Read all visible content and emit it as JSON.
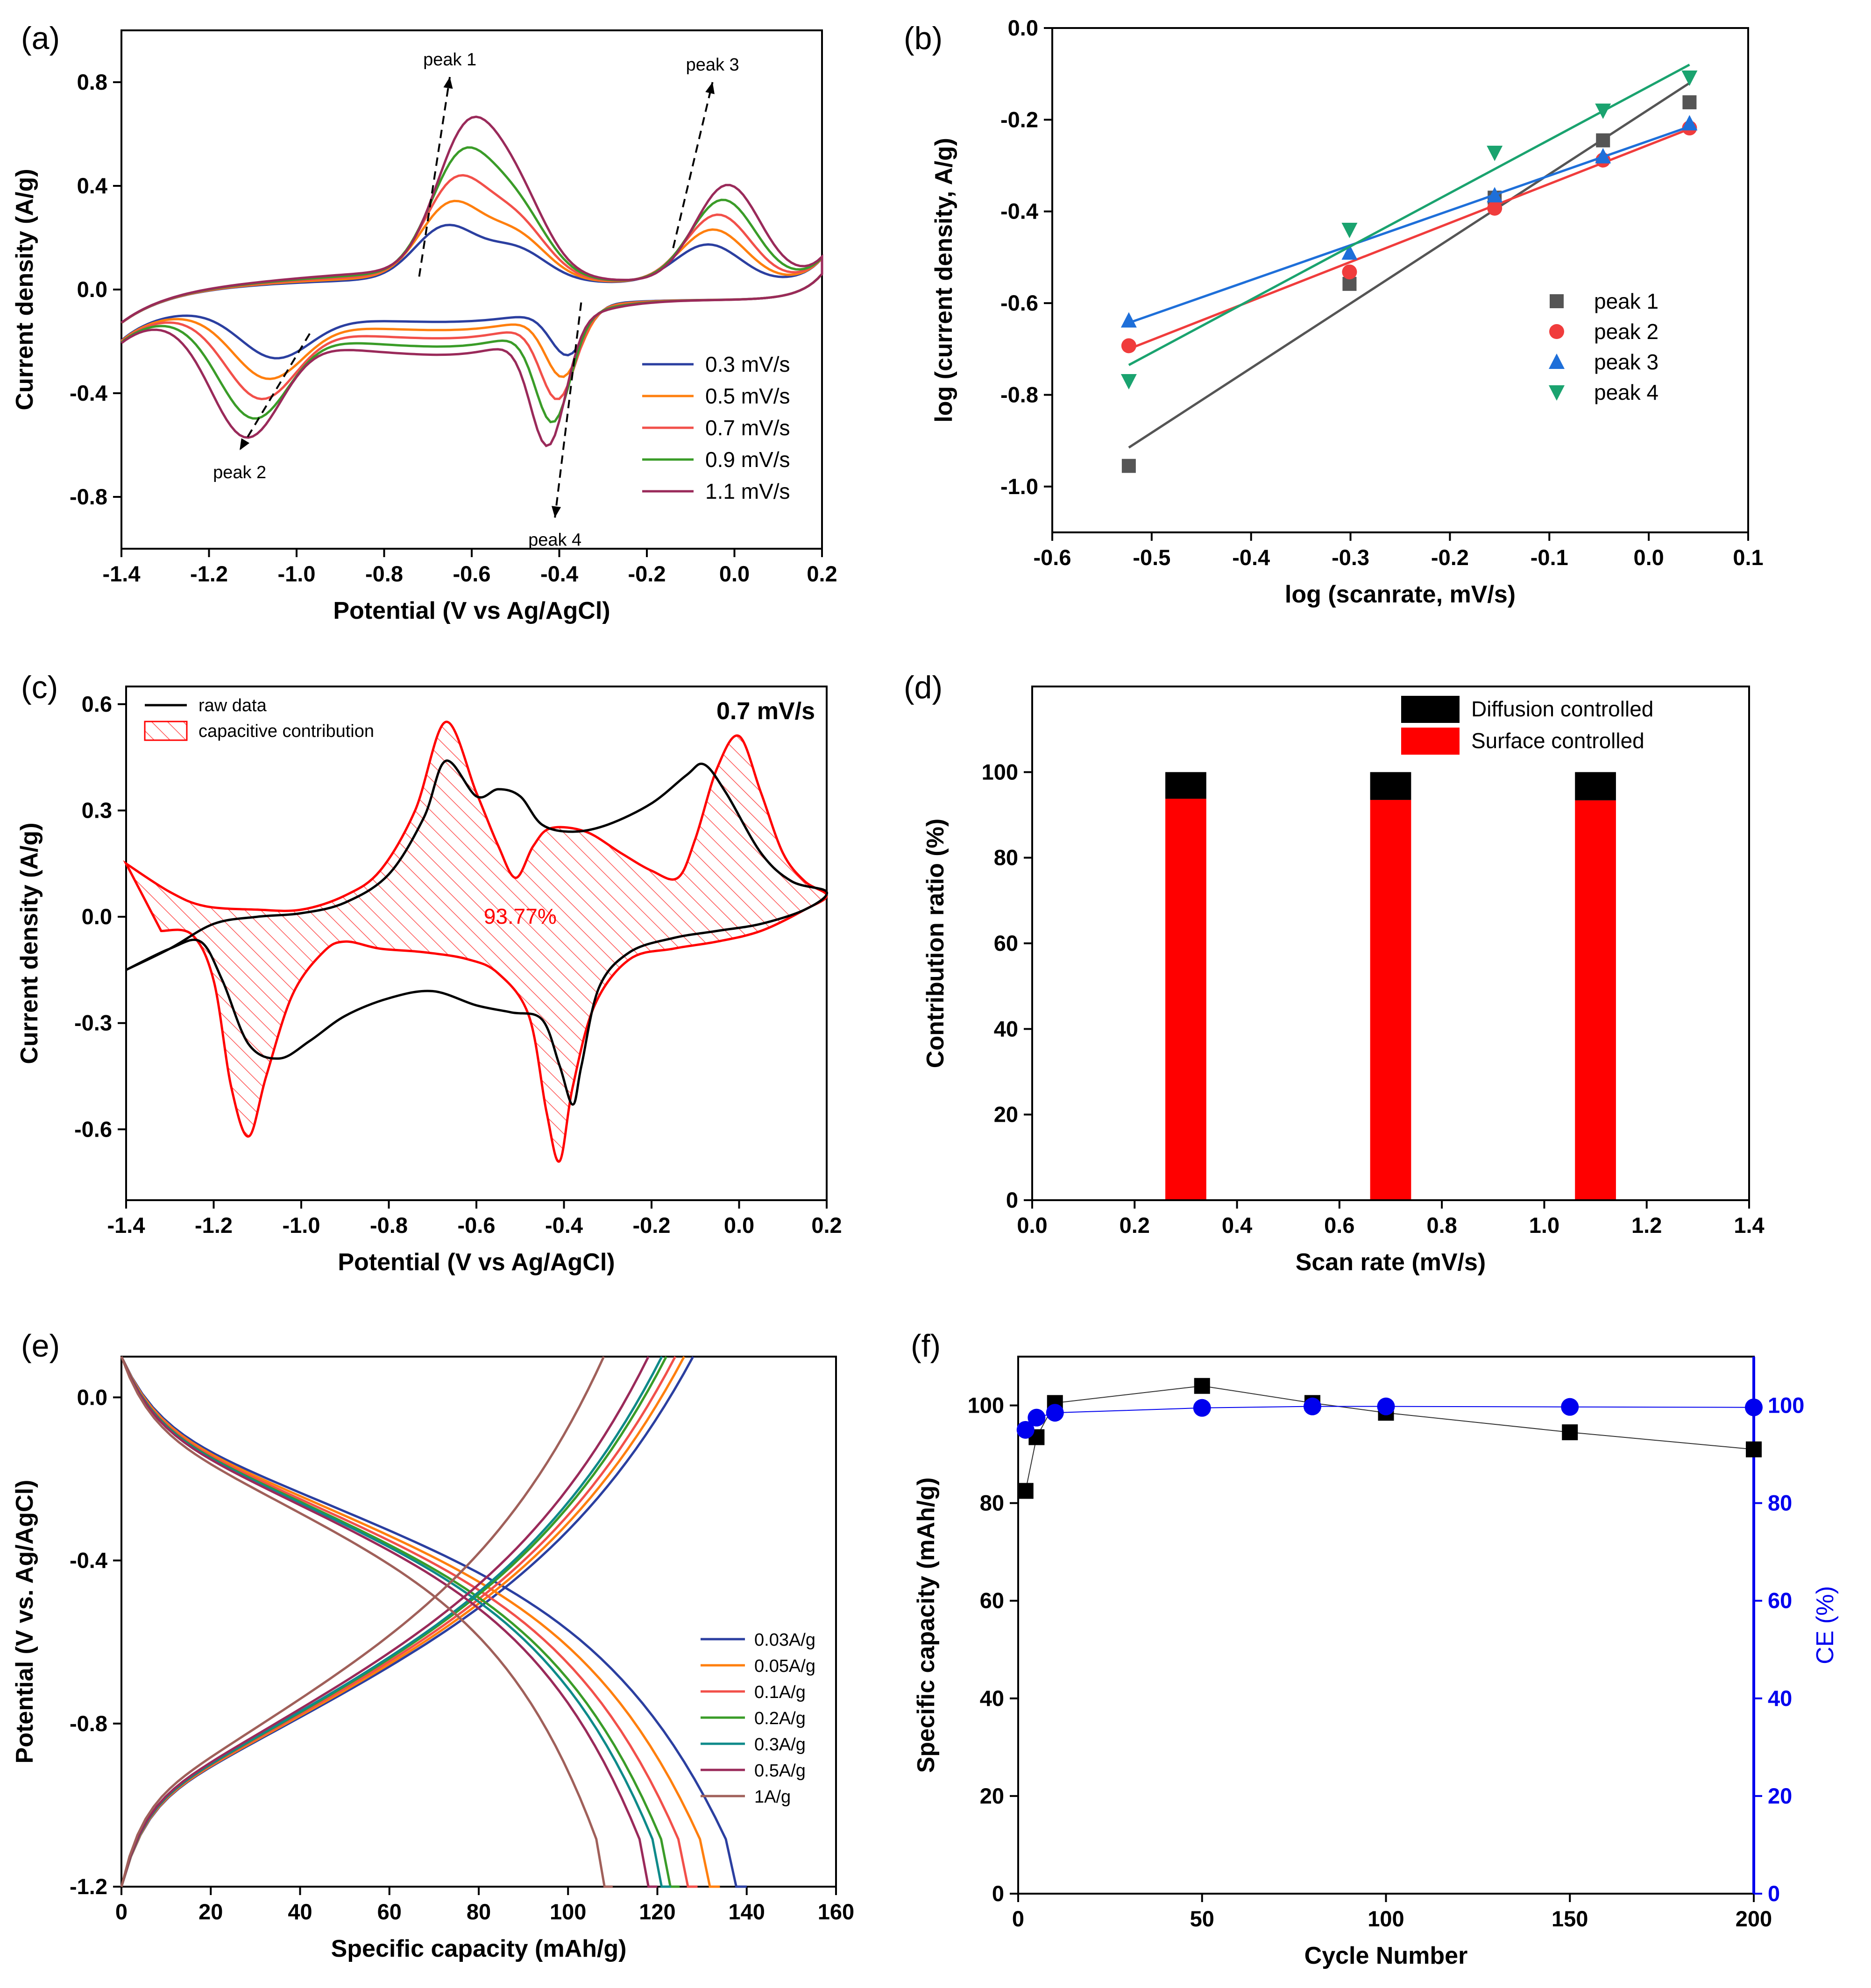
{
  "chart_data": [
    {
      "id": "a",
      "letter": "(a)",
      "type": "line",
      "title": "",
      "xlabel": "Potential (V vs Ag/AgCl)",
      "ylabel": "Current density (A/g)",
      "xlim": [
        -1.4,
        0.2
      ],
      "ylim": [
        -1.0,
        1.0
      ],
      "xticks": [
        -1.4,
        -1.2,
        -1.0,
        -0.8,
        -0.6,
        -0.4,
        -0.2,
        0.0,
        0.2
      ],
      "xtick_labels": [
        "-1.4",
        "-1.2",
        "-1.0",
        "-0.8",
        "-0.6",
        "-0.4",
        "-0.2",
        "0.0",
        "0.2"
      ],
      "yticks": [
        -0.8,
        -0.4,
        0.0,
        0.4,
        0.8
      ],
      "ytick_labels": [
        "-0.8",
        "-0.4",
        "0.0",
        "0.4",
        "0.8"
      ],
      "legend_position": "bottom-right",
      "series": [
        {
          "name": "0.3 mV/s",
          "color": "#2b3fa0",
          "scale": 0.4
        },
        {
          "name": "0.5 mV/s",
          "color": "#ff7f0e",
          "scale": 0.55
        },
        {
          "name": "0.7 mV/s",
          "color": "#f2504a",
          "scale": 0.7
        },
        {
          "name": "0.9 mV/s",
          "color": "#3a9c28",
          "scale": 0.85
        },
        {
          "name": "1.1 mV/s",
          "color": "#9a2a5a",
          "scale": 1.0
        }
      ],
      "annotations": [
        {
          "text": "peak 1",
          "x": -0.72,
          "y": 0.05,
          "x2": -0.65,
          "y2": 0.82
        },
        {
          "text": "peak 3",
          "x": -0.14,
          "y": 0.16,
          "x2": -0.05,
          "y2": 0.8
        },
        {
          "text": "peak 2",
          "x": -0.97,
          "y": -0.17,
          "x2": -1.13,
          "y2": -0.62
        },
        {
          "text": "peak 4",
          "x": -0.35,
          "y": -0.05,
          "x2": -0.41,
          "y2": -0.88
        }
      ]
    },
    {
      "id": "b",
      "letter": "(b)",
      "type": "scatter",
      "title": "",
      "xlabel": "log (scanrate, mV/s)",
      "ylabel": "log (current density, A/g)",
      "xlim": [
        -0.6,
        0.1
      ],
      "ylim": [
        -1.1,
        0.0
      ],
      "xticks": [
        -0.6,
        -0.5,
        -0.4,
        -0.3,
        -0.2,
        -0.1,
        0.0,
        0.1
      ],
      "xtick_labels": [
        "-0.6",
        "-0.5",
        "-0.4",
        "-0.3",
        "-0.2",
        "-0.1",
        "0.0",
        "0.1"
      ],
      "yticks": [
        -1.0,
        -0.8,
        -0.6,
        -0.4,
        -0.2,
        0.0
      ],
      "ytick_labels": [
        "-1.0",
        "-0.8",
        "-0.6",
        "-0.4",
        "-0.2",
        "0.0"
      ],
      "legend_position": "center-right",
      "x": [
        -0.523,
        -0.301,
        -0.155,
        -0.046,
        0.041
      ],
      "series": [
        {
          "name": "peak 1",
          "color": "#555555",
          "marker": "square",
          "values": [
            -0.955,
            -0.558,
            -0.37,
            -0.245,
            -0.162
          ],
          "fit": [
            [
              -0.523,
              -0.915
            ],
            [
              0.041,
              -0.12
            ]
          ]
        },
        {
          "name": "peak 2",
          "color": "#f03c3c",
          "marker": "circle",
          "values": [
            -0.693,
            -0.532,
            -0.393,
            -0.288,
            -0.218
          ],
          "fit": [
            [
              -0.523,
              -0.7
            ],
            [
              0.041,
              -0.22
            ]
          ]
        },
        {
          "name": "peak 3",
          "color": "#1e6fd9",
          "marker": "triangle-up",
          "values": [
            -0.638,
            -0.49,
            -0.365,
            -0.28,
            -0.208
          ],
          "fit": [
            [
              -0.523,
              -0.643
            ],
            [
              0.041,
              -0.215
            ]
          ]
        },
        {
          "name": "peak 4",
          "color": "#1aa36f",
          "marker": "triangle-down",
          "values": [
            -0.77,
            -0.44,
            -0.272,
            -0.18,
            -0.108
          ],
          "fit": [
            [
              -0.523,
              -0.735
            ],
            [
              0.041,
              -0.08
            ]
          ]
        }
      ]
    },
    {
      "id": "c",
      "letter": "(c)",
      "type": "line",
      "title": "0.7 mV/s",
      "xlabel": "Potential (V vs Ag/AgCl)",
      "ylabel": "Current density (A/g)",
      "xlim": [
        -1.4,
        0.2
      ],
      "ylim": [
        -0.8,
        0.65
      ],
      "xticks": [
        -1.4,
        -1.2,
        -1.0,
        -0.8,
        -0.6,
        -0.4,
        -0.2,
        0.0,
        0.2
      ],
      "xtick_labels": [
        "-1.4",
        "-1.2",
        "-1.0",
        "-0.8",
        "-0.6",
        "-0.4",
        "-0.2",
        "0.0",
        "0.2"
      ],
      "yticks": [
        -0.6,
        -0.3,
        0.0,
        0.3,
        0.6
      ],
      "ytick_labels": [
        "-0.6",
        "-0.3",
        "0.0",
        "0.3",
        "0.6"
      ],
      "legend_position": "top-left",
      "legend": [
        {
          "name": "raw data",
          "color": "#000000"
        },
        {
          "name": "capacitive contribution",
          "color": "#ff0000"
        }
      ],
      "center_label": "93.77%",
      "raw_data": {
        "upper": [
          [
            -1.4,
            -0.15
          ],
          [
            -1.3,
            -0.09
          ],
          [
            -1.2,
            -0.02
          ],
          [
            -1.1,
            0.0
          ],
          [
            -1.0,
            0.01
          ],
          [
            -0.9,
            0.04
          ],
          [
            -0.8,
            0.12
          ],
          [
            -0.72,
            0.28
          ],
          [
            -0.67,
            0.44
          ],
          [
            -0.6,
            0.34
          ],
          [
            -0.55,
            0.36
          ],
          [
            -0.5,
            0.34
          ],
          [
            -0.45,
            0.26
          ],
          [
            -0.38,
            0.24
          ],
          [
            -0.3,
            0.26
          ],
          [
            -0.2,
            0.32
          ],
          [
            -0.12,
            0.4
          ],
          [
            -0.08,
            0.43
          ],
          [
            -0.03,
            0.35
          ],
          [
            0.05,
            0.18
          ],
          [
            0.12,
            0.1
          ],
          [
            0.2,
            0.07
          ]
        ],
        "lower": [
          [
            0.2,
            0.07
          ],
          [
            0.15,
            0.02
          ],
          [
            0.05,
            -0.02
          ],
          [
            -0.05,
            -0.04
          ],
          [
            -0.15,
            -0.06
          ],
          [
            -0.25,
            -0.1
          ],
          [
            -0.32,
            -0.2
          ],
          [
            -0.36,
            -0.42
          ],
          [
            -0.38,
            -0.53
          ],
          [
            -0.41,
            -0.42
          ],
          [
            -0.45,
            -0.29
          ],
          [
            -0.52,
            -0.27
          ],
          [
            -0.6,
            -0.25
          ],
          [
            -0.7,
            -0.21
          ],
          [
            -0.8,
            -0.23
          ],
          [
            -0.9,
            -0.28
          ],
          [
            -0.98,
            -0.35
          ],
          [
            -1.05,
            -0.4
          ],
          [
            -1.12,
            -0.36
          ],
          [
            -1.18,
            -0.18
          ],
          [
            -1.23,
            -0.07
          ],
          [
            -1.3,
            -0.09
          ],
          [
            -1.4,
            -0.15
          ]
        ]
      },
      "capacitive": [
        [
          -1.4,
          0.15
        ],
        [
          -1.3,
          0.07
        ],
        [
          -1.22,
          0.03
        ],
        [
          -1.1,
          0.02
        ],
        [
          -1.0,
          0.02
        ],
        [
          -0.9,
          0.06
        ],
        [
          -0.82,
          0.13
        ],
        [
          -0.74,
          0.3
        ],
        [
          -0.67,
          0.55
        ],
        [
          -0.6,
          0.35
        ],
        [
          -0.55,
          0.2
        ],
        [
          -0.51,
          0.11
        ],
        [
          -0.47,
          0.2
        ],
        [
          -0.43,
          0.25
        ],
        [
          -0.35,
          0.24
        ],
        [
          -0.27,
          0.18
        ],
        [
          -0.2,
          0.13
        ],
        [
          -0.14,
          0.11
        ],
        [
          -0.1,
          0.22
        ],
        [
          -0.05,
          0.42
        ],
        [
          0.0,
          0.51
        ],
        [
          0.05,
          0.35
        ],
        [
          0.1,
          0.18
        ],
        [
          0.15,
          0.1
        ],
        [
          0.2,
          0.06
        ],
        [
          0.15,
          0.02
        ],
        [
          0.05,
          -0.04
        ],
        [
          -0.05,
          -0.07
        ],
        [
          -0.15,
          -0.09
        ],
        [
          -0.25,
          -0.12
        ],
        [
          -0.33,
          -0.25
        ],
        [
          -0.38,
          -0.48
        ],
        [
          -0.41,
          -0.69
        ],
        [
          -0.44,
          -0.55
        ],
        [
          -0.48,
          -0.28
        ],
        [
          -0.55,
          -0.16
        ],
        [
          -0.62,
          -0.12
        ],
        [
          -0.72,
          -0.1
        ],
        [
          -0.82,
          -0.09
        ],
        [
          -0.9,
          -0.07
        ],
        [
          -0.95,
          -0.1
        ],
        [
          -1.02,
          -0.22
        ],
        [
          -1.08,
          -0.45
        ],
        [
          -1.12,
          -0.62
        ],
        [
          -1.16,
          -0.48
        ],
        [
          -1.2,
          -0.18
        ],
        [
          -1.25,
          -0.05
        ],
        [
          -1.32,
          -0.04
        ],
        [
          -1.4,
          0.15
        ]
      ]
    },
    {
      "id": "d",
      "letter": "(d)",
      "type": "bar",
      "title": "",
      "xlabel": "Scan rate (mV/s)",
      "ylabel": "Contribution ratio (%)",
      "xlim": [
        0.0,
        1.4
      ],
      "ylim": [
        0,
        120
      ],
      "xticks": [
        0.0,
        0.2,
        0.4,
        0.6,
        0.8,
        1.0,
        1.2,
        1.4
      ],
      "xtick_labels": [
        "0.0",
        "0.2",
        "0.4",
        "0.6",
        "0.8",
        "1.0",
        "1.2",
        "1.4"
      ],
      "yticks": [
        0,
        20,
        40,
        60,
        80,
        100
      ],
      "ytick_labels": [
        "0",
        "20",
        "40",
        "60",
        "80",
        "100"
      ],
      "bar_width": 0.08,
      "legend_position": "top-right",
      "categories": [
        0.3,
        0.7,
        1.1
      ],
      "series": [
        {
          "name": "Diffusion controlled",
          "color": "#000000",
          "values": [
            6.23,
            6.5,
            6.6
          ]
        },
        {
          "name": "Surface controlled",
          "color": "#ff0000",
          "values": [
            93.77,
            93.5,
            93.4
          ]
        }
      ]
    },
    {
      "id": "e",
      "letter": "(e)",
      "type": "line",
      "title": "",
      "xlabel": "Specific capacity (mAh/g)",
      "ylabel": "Potential (V vs. Ag/AgCl)",
      "xlim": [
        0,
        160
      ],
      "ylim": [
        -1.2,
        0.1
      ],
      "xticks": [
        0,
        20,
        40,
        60,
        80,
        100,
        120,
        140,
        160
      ],
      "xtick_labels": [
        "0",
        "20",
        "40",
        "60",
        "80",
        "100",
        "120",
        "140",
        "160"
      ],
      "yticks": [
        -1.2,
        -0.8,
        -0.4,
        0.0
      ],
      "ytick_labels": [
        "-1.2",
        "-0.8",
        "-0.4",
        "0.0"
      ],
      "legend_position": "lower-right",
      "series": [
        {
          "name": "0.03A/g",
          "color": "#2b3fa0",
          "capacity": 140,
          "charge": 128
        },
        {
          "name": "0.05A/g",
          "color": "#ff7f0e",
          "capacity": 134,
          "charge": 126
        },
        {
          "name": "0.1A/g",
          "color": "#f2504a",
          "capacity": 129,
          "charge": 124
        },
        {
          "name": "0.2A/g",
          "color": "#3a9c28",
          "capacity": 125,
          "charge": 122
        },
        {
          "name": "0.3A/g",
          "color": "#0e8a8a",
          "capacity": 123,
          "charge": 121
        },
        {
          "name": "0.5A/g",
          "color": "#9a2a5a",
          "capacity": 120,
          "charge": 118
        },
        {
          "name": "1A/g",
          "color": "#a0605a",
          "capacity": 110,
          "charge": 108
        }
      ]
    },
    {
      "id": "f",
      "letter": "(f)",
      "type": "scatter",
      "title": "",
      "xlabel": "Cycle Number",
      "ylabel": "Specific capacity (mAh/g)",
      "y2label": "CE (%)",
      "xlim": [
        0,
        200
      ],
      "ylim": [
        0,
        110
      ],
      "y2lim": [
        0,
        110
      ],
      "xticks": [
        0,
        50,
        100,
        150,
        200
      ],
      "xtick_labels": [
        "0",
        "50",
        "100",
        "150",
        "200"
      ],
      "yticks": [
        0,
        20,
        40,
        60,
        80,
        100
      ],
      "ytick_labels": [
        "0",
        "20",
        "40",
        "60",
        "80",
        "100"
      ],
      "y2ticks": [
        0,
        20,
        40,
        60,
        80,
        100
      ],
      "y2tick_labels": [
        "0",
        "20",
        "40",
        "60",
        "80",
        "100"
      ],
      "y2color": "#0000ee",
      "x": [
        2,
        5,
        10,
        50,
        80,
        100,
        150,
        200
      ],
      "series": [
        {
          "name": "Specific capacity",
          "color": "#000000",
          "axis": "left",
          "marker": "square",
          "values": [
            82.5,
            93.5,
            100.5,
            104,
            100.5,
            98.5,
            94.5,
            91
          ]
        },
        {
          "name": "CE",
          "color": "#0000ee",
          "axis": "right",
          "marker": "circle",
          "values": [
            95,
            97.5,
            98.5,
            99.5,
            99.8,
            99.8,
            99.7,
            99.6
          ]
        }
      ]
    }
  ]
}
